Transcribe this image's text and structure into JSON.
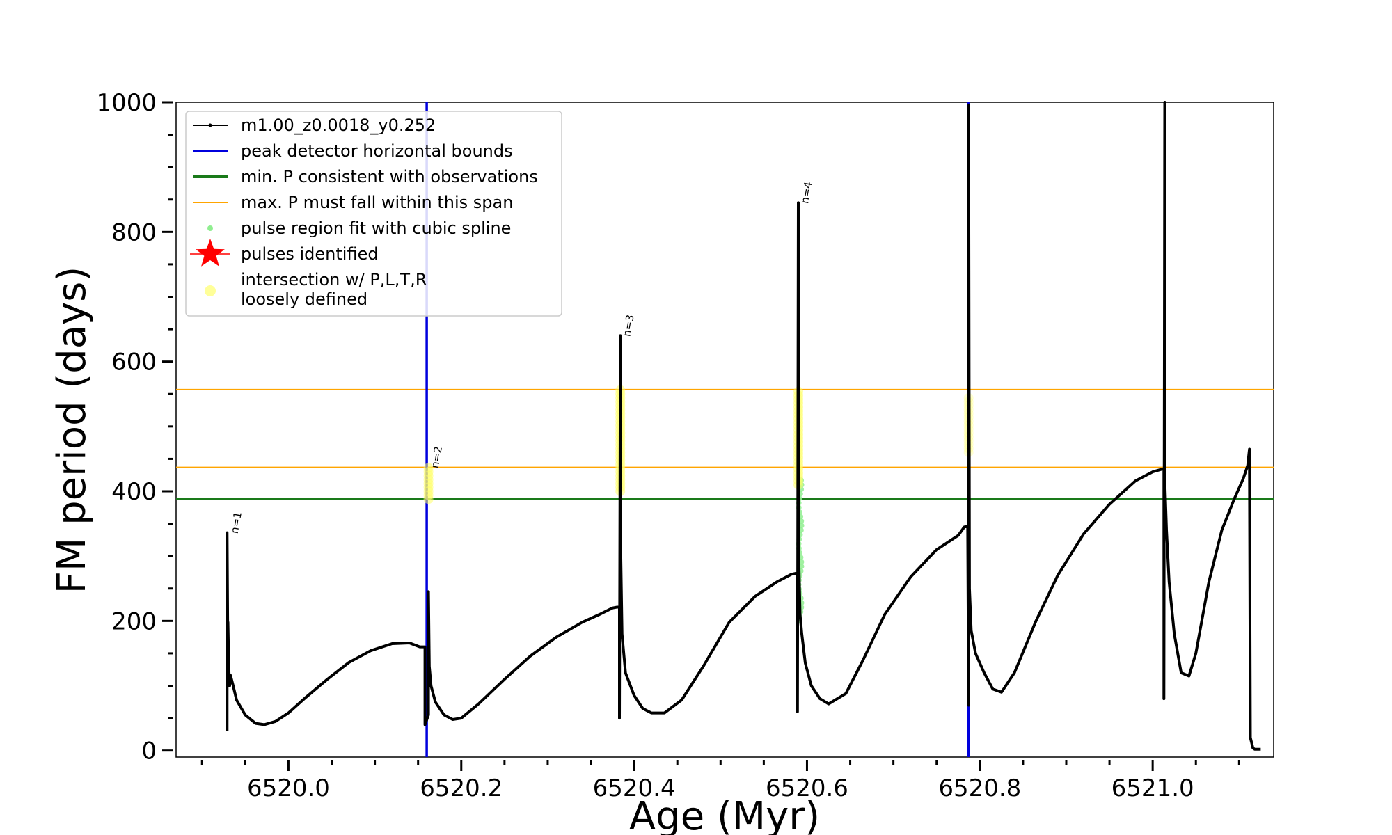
{
  "chart_data": {
    "type": "line",
    "title": "",
    "xlabel": "Age (Myr)",
    "ylabel": "FM period (days)",
    "xlim": [
      6519.87,
      6521.14
    ],
    "ylim": [
      -10,
      1000
    ],
    "x_ticks": [
      6520.0,
      6520.2,
      6520.4,
      6520.6,
      6520.8,
      6521.0
    ],
    "x_tick_labels": [
      "6520.0",
      "6520.2",
      "6520.4",
      "6520.6",
      "6520.8",
      "6521.0"
    ],
    "y_ticks": [
      0,
      200,
      400,
      600,
      800,
      1000
    ],
    "y_tick_labels": [
      "0",
      "200",
      "400",
      "600",
      "800",
      "1000"
    ],
    "legend": {
      "position": "upper-left",
      "entries": [
        {
          "label": "m1.00_z0.0018_y0.252",
          "style": "line-marker",
          "color": "#000000"
        },
        {
          "label": "peak detector horizontal bounds",
          "style": "line",
          "color": "#0000dd"
        },
        {
          "label": "min. P consistent with observations",
          "style": "line",
          "color": "#1a7a1a"
        },
        {
          "label": "max. P must fall within this span",
          "style": "thin-line",
          "color": "#ffa500"
        },
        {
          "label": "pulse region fit with cubic spline",
          "style": "dot",
          "color": "#90ee90"
        },
        {
          "label": "pulses identified",
          "style": "star",
          "color": "#ff0000"
        },
        {
          "label": "intersection w/ P,L,T,R",
          "label2": "loosely defined",
          "style": "dot",
          "color": "#ffff99"
        }
      ]
    },
    "vertical_bounds": [
      6520.16,
      6520.787
    ],
    "min_period": 388,
    "max_period_span": [
      437,
      557
    ],
    "series": [
      {
        "name": "m1.00_z0.0018_y0.252",
        "color": "#000000",
        "x": [
          6519.929,
          6519.929,
          6519.93,
          6519.93,
          6519.931,
          6519.932,
          6519.933,
          6519.936,
          6519.94,
          6519.95,
          6519.962,
          6519.972,
          6519.985,
          6520.0,
          6520.02,
          6520.045,
          6520.07,
          6520.095,
          6520.12,
          6520.14,
          6520.152,
          6520.158,
          6520.158,
          6520.162,
          6520.162,
          6520.163,
          6520.165,
          6520.17,
          6520.18,
          6520.19,
          6520.2,
          6520.22,
          6520.25,
          6520.28,
          6520.31,
          6520.34,
          6520.36,
          6520.375,
          6520.383,
          6520.383,
          6520.384,
          6520.384,
          6520.386,
          6520.39,
          6520.4,
          6520.41,
          6520.42,
          6520.435,
          6520.455,
          6520.48,
          6520.51,
          6520.54,
          6520.565,
          6520.582,
          6520.589,
          6520.589,
          6520.59,
          6520.59,
          6520.592,
          6520.594,
          6520.598,
          6520.605,
          6520.615,
          6520.625,
          6520.645,
          6520.665,
          6520.69,
          6520.72,
          6520.75,
          6520.775,
          6520.782,
          6520.786,
          6520.786,
          6520.787,
          6520.787,
          6520.788,
          6520.79,
          6520.795,
          6520.805,
          6520.815,
          6520.825,
          6520.84,
          6520.865,
          6520.89,
          6520.92,
          6520.95,
          6520.98,
          6521.0,
          6521.013,
          6521.013,
          6521.014,
          6521.014,
          6521.016,
          6521.019,
          6521.025,
          6521.033,
          6521.042,
          6521.05,
          6521.065,
          6521.08,
          6521.095,
          6521.105,
          6521.11,
          6521.112,
          6521.112,
          6521.113,
          6521.116,
          6521.118,
          6521.125
        ],
        "y": [
          30,
          336,
          130,
          198,
          128,
          100,
          116,
          100,
          78,
          55,
          42,
          40,
          45,
          58,
          82,
          110,
          136,
          154,
          165,
          166,
          160,
          160,
          40,
          55,
          245,
          130,
          100,
          75,
          55,
          48,
          50,
          72,
          110,
          146,
          175,
          198,
          210,
          220,
          222,
          50,
          640,
          345,
          180,
          120,
          85,
          65,
          58,
          58,
          78,
          130,
          198,
          238,
          260,
          272,
          274,
          60,
          845,
          330,
          210,
          180,
          135,
          100,
          80,
          72,
          88,
          140,
          210,
          268,
          310,
          332,
          345,
          346,
          340,
          70,
          995,
          250,
          185,
          150,
          120,
          95,
          90,
          120,
          200,
          270,
          334,
          380,
          416,
          430,
          435,
          80,
          1000,
          420,
          340,
          260,
          180,
          120,
          115,
          150,
          260,
          340,
          390,
          420,
          440,
          465,
          460,
          20,
          4,
          2,
          2
        ]
      }
    ],
    "pulse_labels": [
      {
        "text": "n=1",
        "x": 6519.93,
        "y": 336
      },
      {
        "text": "n=2",
        "x": 6520.162,
        "y": 437
      },
      {
        "text": "n=3",
        "x": 6520.384,
        "y": 640
      },
      {
        "text": "n=4",
        "x": 6520.59,
        "y": 845
      }
    ],
    "spline_fit_region": {
      "x": 6520.592,
      "y_range": [
        200,
        420
      ]
    },
    "intersection_regions": [
      {
        "x": 6520.162,
        "y_range": [
          388,
          437
        ]
      },
      {
        "x": 6520.384,
        "y_range": [
          400,
          557
        ]
      },
      {
        "x": 6520.59,
        "y_range": [
          410,
          557
        ]
      },
      {
        "x": 6520.787,
        "y_range": [
          460,
          545
        ]
      }
    ]
  }
}
